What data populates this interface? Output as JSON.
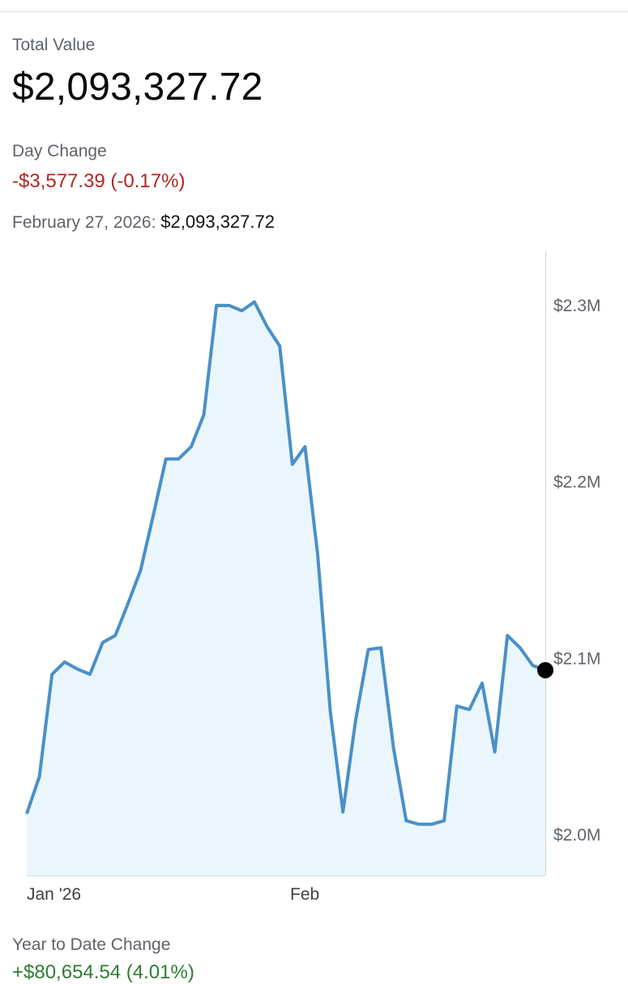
{
  "portfolio": {
    "total_value_label": "Total Value",
    "total_value": "$2,093,327.72",
    "day_change_label": "Day Change",
    "day_change": "-$3,577.39 (-0.17%)",
    "selected_date_label": "February 27, 2026:",
    "selected_value": "$2,093,327.72",
    "ytd_change_label": "Year to Date Change",
    "ytd_change": "+$80,654.54 (4.01%)"
  },
  "colors": {
    "line": "#4a90c8",
    "fill": "#eaf6fc",
    "negative": "#b3261e",
    "positive": "#2e7d32",
    "marker": "#000000"
  },
  "chart_data": {
    "type": "area",
    "y_unit": "USD",
    "ylim": [
      1970000,
      2330000
    ],
    "yticks": [
      2000000,
      2100000,
      2200000,
      2300000
    ],
    "ytick_labels": [
      "$2.0M",
      "$2.1M",
      "$2.2M",
      "$2.3M"
    ],
    "xtick_labels": [
      "Jan '26",
      "Feb"
    ],
    "xtick_positions": [
      "2026-01-01",
      "2026-02-01"
    ],
    "values": [
      2012000,
      2033000,
      2091000,
      2098000,
      2094000,
      2091000,
      2109000,
      2113000,
      2131000,
      2150000,
      2181000,
      2213000,
      2213000,
      2220000,
      2238000,
      2300000,
      2300000,
      2297000,
      2302000,
      2288000,
      2277000,
      2210000,
      2220000,
      2159000,
      2070000,
      2013000,
      2065000,
      2105000,
      2106000,
      2049000,
      2008000,
      2006000,
      2006000,
      2008000,
      2073000,
      2071000,
      2086000,
      2047000,
      2113000,
      2106000,
      2096000,
      2093327.72
    ],
    "highlight": {
      "date": "2026-02-27",
      "value": 2093327.72
    }
  }
}
